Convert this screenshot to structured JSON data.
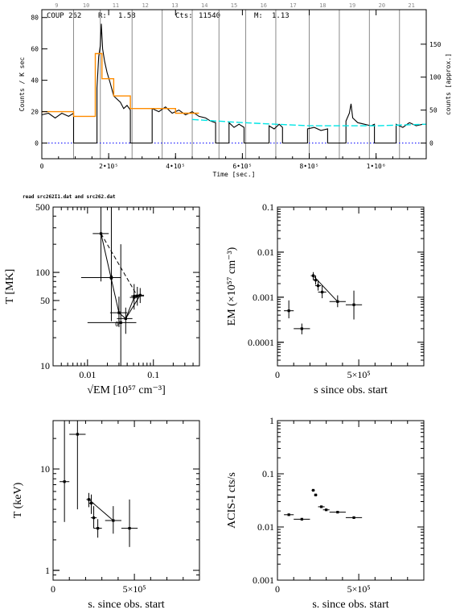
{
  "header": {
    "source": "COUP 262",
    "r_label": "R:",
    "r_value": "1.58",
    "cts_label": "Cts:",
    "cts_value": "11540",
    "m_label": "M:",
    "m_value": "1.13",
    "file_note": "read src262I1.dat and src262.dat"
  },
  "chart_data": [
    {
      "id": "lightcurve",
      "type": "line",
      "xlabel": "Time [sec.]",
      "ylabel": "Counts / K sec",
      "ylabel_right": "counts [approx.]",
      "xlim": [
        0,
        1150000
      ],
      "ylim": [
        -10,
        85
      ],
      "x_ticks": [
        {
          "v": 0,
          "t": "0"
        },
        {
          "v": 200000,
          "t": "2•10⁵"
        },
        {
          "v": 400000,
          "t": "4•10⁵"
        },
        {
          "v": 600000,
          "t": "6•10⁵"
        },
        {
          "v": 800000,
          "t": "8•10⁵"
        },
        {
          "v": 1000000,
          "t": "1•10⁶"
        }
      ],
      "y_ticks": [
        {
          "v": 0,
          "t": "0"
        },
        {
          "v": 20,
          "t": "20"
        },
        {
          "v": 40,
          "t": "40"
        },
        {
          "v": 60,
          "t": "60"
        },
        {
          "v": 80,
          "t": "80"
        }
      ],
      "y_right_ticks": [
        {
          "v": 0,
          "t": "0"
        },
        {
          "v": 21,
          "t": "50"
        },
        {
          "v": 42,
          "t": "100"
        },
        {
          "v": 63,
          "t": "150"
        }
      ],
      "segment_numbers": [
        "9",
        "10",
        "11",
        "12",
        "13",
        "14",
        "15",
        "16",
        "17",
        "18",
        "19",
        "20",
        "21"
      ],
      "gaps": [
        [
          100000,
          160000
        ],
        [
          260000,
          330000
        ],
        [
          520000,
          565000
        ],
        [
          605000,
          680000
        ],
        [
          720000,
          800000
        ],
        [
          855000,
          925000
        ],
        [
          995000,
          1060000
        ]
      ],
      "segment_edges": [
        95000,
        175000,
        270000,
        360000,
        450000,
        530000,
        610000,
        700000,
        800000,
        890000,
        980000,
        1070000
      ],
      "series": [
        {
          "role": "binned counts",
          "color": "#000000",
          "points": [
            [
              0,
              18
            ],
            [
              20000,
              19
            ],
            [
              40000,
              16
            ],
            [
              60000,
              19
            ],
            [
              80000,
              17
            ],
            [
              95000,
              19
            ],
            [
              95000,
              0
            ],
            [
              165000,
              0
            ],
            [
              165000,
              35
            ],
            [
              170000,
              55
            ],
            [
              175000,
              62
            ],
            [
              178000,
              76
            ],
            [
              182000,
              60
            ],
            [
              188000,
              52
            ],
            [
              195000,
              45
            ],
            [
              205000,
              38
            ],
            [
              215000,
              30
            ],
            [
              225000,
              28
            ],
            [
              235000,
              26
            ],
            [
              245000,
              22
            ],
            [
              255000,
              24
            ],
            [
              265000,
              21
            ],
            [
              265000,
              0
            ],
            [
              330000,
              0
            ],
            [
              330000,
              22
            ],
            [
              350000,
              20
            ],
            [
              370000,
              23
            ],
            [
              390000,
              19
            ],
            [
              410000,
              21
            ],
            [
              430000,
              18
            ],
            [
              450000,
              20
            ],
            [
              470000,
              17
            ],
            [
              490000,
              16
            ],
            [
              505000,
              14
            ],
            [
              520000,
              13
            ],
            [
              520000,
              0
            ],
            [
              560000,
              0
            ],
            [
              560000,
              13
            ],
            [
              575000,
              10
            ],
            [
              590000,
              12
            ],
            [
              605000,
              10
            ],
            [
              605000,
              0
            ],
            [
              680000,
              0
            ],
            [
              680000,
              11
            ],
            [
              695000,
              9
            ],
            [
              710000,
              12
            ],
            [
              720000,
              10
            ],
            [
              720000,
              0
            ],
            [
              795000,
              0
            ],
            [
              795000,
              9
            ],
            [
              815000,
              10
            ],
            [
              835000,
              8
            ],
            [
              855000,
              9
            ],
            [
              855000,
              0
            ],
            [
              910000,
              0
            ],
            [
              910000,
              14
            ],
            [
              920000,
              19
            ],
            [
              925000,
              25
            ],
            [
              930000,
              16
            ],
            [
              945000,
              13
            ],
            [
              965000,
              12
            ],
            [
              985000,
              11
            ],
            [
              995000,
              12
            ],
            [
              995000,
              0
            ],
            [
              1060000,
              0
            ],
            [
              1060000,
              12
            ],
            [
              1080000,
              10
            ],
            [
              1100000,
              13
            ],
            [
              1120000,
              11
            ],
            [
              1140000,
              12
            ]
          ]
        },
        {
          "role": "block fit",
          "color": "#ff8c00",
          "points": [
            [
              0,
              20
            ],
            [
              95000,
              20
            ],
            [
              95000,
              17
            ],
            [
              160000,
              17
            ],
            [
              160000,
              57
            ],
            [
              180000,
              57
            ],
            [
              180000,
              41
            ],
            [
              215000,
              41
            ],
            [
              215000,
              30
            ],
            [
              265000,
              30
            ],
            [
              265000,
              22
            ],
            [
              400000,
              22
            ],
            [
              400000,
              19
            ],
            [
              470000,
              19
            ]
          ]
        },
        {
          "role": "quiescent level",
          "color": "#00e5e5",
          "points": [
            [
              450000,
              15
            ],
            [
              600000,
              13
            ],
            [
              800000,
              11
            ],
            [
              1000000,
              11
            ],
            [
              1150000,
              12
            ]
          ]
        }
      ],
      "zero_line_color": "#0000ff"
    },
    {
      "id": "t_vs_sqrtem",
      "type": "scatter",
      "xlabel": "√EM [10⁵⁷ cm⁻³]",
      "ylabel": "T [MK]",
      "x_scale": "log",
      "y_scale": "log",
      "xlim": [
        0.003,
        0.5
      ],
      "ylim": [
        10,
        500
      ],
      "x_ticks": [
        {
          "v": 0.01,
          "t": "0.01"
        },
        {
          "v": 0.1,
          "t": "0.1"
        }
      ],
      "y_ticks": [
        {
          "v": 10,
          "t": "10"
        },
        {
          "v": 50,
          "t": "50"
        },
        {
          "v": 100,
          "t": "100"
        },
        {
          "v": 500,
          "t": "500"
        }
      ],
      "points": [
        {
          "x": 0.016,
          "y": 260,
          "xerr": [
            0.012,
            0.021
          ],
          "yerr": [
            80,
            500
          ]
        },
        {
          "x": 0.023,
          "y": 88,
          "xerr": [
            0.008,
            0.032
          ],
          "yerr": [
            30,
            500
          ]
        },
        {
          "x": 0.051,
          "y": 54,
          "xerr": [
            0.044,
            0.058
          ],
          "yerr": [
            40,
            75
          ]
        },
        {
          "x": 0.057,
          "y": 56,
          "xerr": [
            0.046,
            0.072
          ],
          "yerr": [
            44,
            70
          ]
        },
        {
          "x": 0.063,
          "y": 57,
          "xerr": [
            0.049,
            0.072
          ],
          "yerr": [
            47,
            68
          ]
        },
        {
          "x": 0.038,
          "y": 32,
          "xerr": [
            0.028,
            0.048
          ],
          "yerr": [
            22,
            42
          ]
        },
        {
          "x": 0.03,
          "y": 37,
          "xerr": [
            0.022,
            0.04
          ],
          "yerr": [
            26,
            55
          ]
        },
        {
          "x": 0.032,
          "y": 29,
          "xerr": [
            0.01,
            0.055
          ],
          "yerr": [
            10,
            200
          ]
        }
      ],
      "dashed_path": [
        [
          0.016,
          260
        ],
        [
          0.057,
          56
        ]
      ],
      "solid_path": [
        [
          0.016,
          260
        ],
        [
          0.03,
          37
        ],
        [
          0.038,
          32
        ],
        [
          0.051,
          54
        ],
        [
          0.063,
          57
        ],
        [
          0.038,
          32
        ]
      ],
      "markers": [
        {
          "x": 0.023,
          "y": 88,
          "t": "0"
        },
        {
          "x": 0.028,
          "y": 28,
          "t": "0"
        }
      ]
    },
    {
      "id": "em_vs_time",
      "type": "scatter",
      "xlabel": "s since obs. start",
      "ylabel": "EM (×10⁵⁷ cm⁻³)",
      "x_scale": "linear",
      "y_scale": "log",
      "xlim": [
        0,
        900000
      ],
      "ylim": [
        3e-05,
        0.1
      ],
      "x_ticks": [
        {
          "v": 0,
          "t": "0"
        },
        {
          "v": 500000,
          "t": "5×10⁵"
        }
      ],
      "y_ticks": [
        {
          "v": 0.0001,
          "t": "0.0001"
        },
        {
          "v": 0.001,
          "t": "0.001"
        },
        {
          "v": 0.01,
          "t": "0.01"
        },
        {
          "v": 0.1,
          "t": "0.1"
        }
      ],
      "points": [
        {
          "x": 70000,
          "y": 0.0005,
          "xerr": [
            40000,
            100000
          ],
          "yerr": [
            0.00034,
            0.00085
          ]
        },
        {
          "x": 150000,
          "y": 0.0002,
          "xerr": [
            100000,
            200000
          ],
          "yerr": [
            0.00015,
            0.00026
          ]
        },
        {
          "x": 220000,
          "y": 0.003,
          "xerr": [
            205000,
            235000
          ],
          "yerr": [
            0.0024,
            0.0036
          ]
        },
        {
          "x": 235000,
          "y": 0.0024,
          "xerr": [
            220000,
            250000
          ],
          "yerr": [
            0.0019,
            0.003
          ]
        },
        {
          "x": 250000,
          "y": 0.0018,
          "xerr": [
            232000,
            268000
          ],
          "yerr": [
            0.0014,
            0.0023
          ]
        },
        {
          "x": 275000,
          "y": 0.0013,
          "xerr": [
            250000,
            300000
          ],
          "yerr": [
            0.00095,
            0.0018
          ]
        },
        {
          "x": 370000,
          "y": 0.0008,
          "xerr": [
            320000,
            420000
          ],
          "yerr": [
            0.0006,
            0.0011
          ]
        },
        {
          "x": 470000,
          "y": 0.00068,
          "xerr": [
            420000,
            520000
          ],
          "yerr": [
            0.00032,
            0.0014
          ]
        }
      ],
      "fit_line": [
        [
          220000,
          0.003
        ],
        [
          370000,
          0.0008
        ]
      ]
    },
    {
      "id": "t_vs_time",
      "type": "scatter",
      "xlabel": "s. since obs. start",
      "ylabel": "T (keV)",
      "x_scale": "linear",
      "y_scale": "log",
      "xlim": [
        0,
        900000
      ],
      "ylim": [
        0.8,
        30
      ],
      "x_ticks": [
        {
          "v": 0,
          "t": "0"
        },
        {
          "v": 500000,
          "t": "5×10⁵"
        }
      ],
      "y_ticks": [
        {
          "v": 1,
          "t": "1"
        },
        {
          "v": 10,
          "t": "10"
        }
      ],
      "points": [
        {
          "x": 70000,
          "y": 7.5,
          "xerr": [
            40000,
            100000
          ],
          "yerr": [
            3,
            30
          ]
        },
        {
          "x": 150000,
          "y": 22,
          "xerr": [
            100000,
            200000
          ],
          "yerr": [
            4,
            30
          ]
        },
        {
          "x": 220000,
          "y": 5,
          "xerr": [
            205000,
            235000
          ],
          "yerr": [
            4.2,
            5.8
          ]
        },
        {
          "x": 235000,
          "y": 4.6,
          "xerr": [
            220000,
            250000
          ],
          "yerr": [
            3.6,
            5.6
          ]
        },
        {
          "x": 250000,
          "y": 3.3,
          "xerr": [
            232000,
            268000
          ],
          "yerr": [
            2.6,
            4.3
          ]
        },
        {
          "x": 275000,
          "y": 2.6,
          "xerr": [
            250000,
            300000
          ],
          "yerr": [
            2.1,
            3.2
          ]
        },
        {
          "x": 370000,
          "y": 3.1,
          "xerr": [
            320000,
            420000
          ],
          "yerr": [
            2.3,
            4.3
          ]
        },
        {
          "x": 470000,
          "y": 2.6,
          "xerr": [
            420000,
            520000
          ],
          "yerr": [
            1.7,
            5.0
          ]
        }
      ],
      "fit_line": [
        [
          220000,
          5
        ],
        [
          370000,
          3.1
        ]
      ]
    },
    {
      "id": "rate_vs_time",
      "type": "scatter",
      "xlabel": "s. since obs. start",
      "ylabel": "ACIS-I cts/s",
      "x_scale": "linear",
      "y_scale": "log",
      "xlim": [
        0,
        900000
      ],
      "ylim": [
        0.001,
        1
      ],
      "x_ticks": [
        {
          "v": 0,
          "t": "0"
        },
        {
          "v": 500000,
          "t": "5×10⁵"
        }
      ],
      "y_ticks": [
        {
          "v": 0.001,
          "t": "0.001"
        },
        {
          "v": 0.01,
          "t": "0.01"
        },
        {
          "v": 0.1,
          "t": "0.1"
        },
        {
          "v": 1,
          "t": "1"
        }
      ],
      "points": [
        {
          "x": 70000,
          "y": 0.017,
          "xerr": [
            40000,
            100000
          ]
        },
        {
          "x": 150000,
          "y": 0.014,
          "xerr": [
            100000,
            200000
          ]
        },
        {
          "x": 220000,
          "y": 0.049,
          "xerr": [
            210000,
            230000
          ]
        },
        {
          "x": 235000,
          "y": 0.04,
          "xerr": [
            225000,
            245000
          ]
        },
        {
          "x": 270000,
          "y": 0.024,
          "xerr": [
            250000,
            290000
          ]
        },
        {
          "x": 300000,
          "y": 0.021,
          "xerr": [
            280000,
            320000
          ]
        },
        {
          "x": 370000,
          "y": 0.019,
          "xerr": [
            320000,
            420000
          ]
        },
        {
          "x": 470000,
          "y": 0.015,
          "xerr": [
            420000,
            520000
          ]
        }
      ]
    }
  ]
}
